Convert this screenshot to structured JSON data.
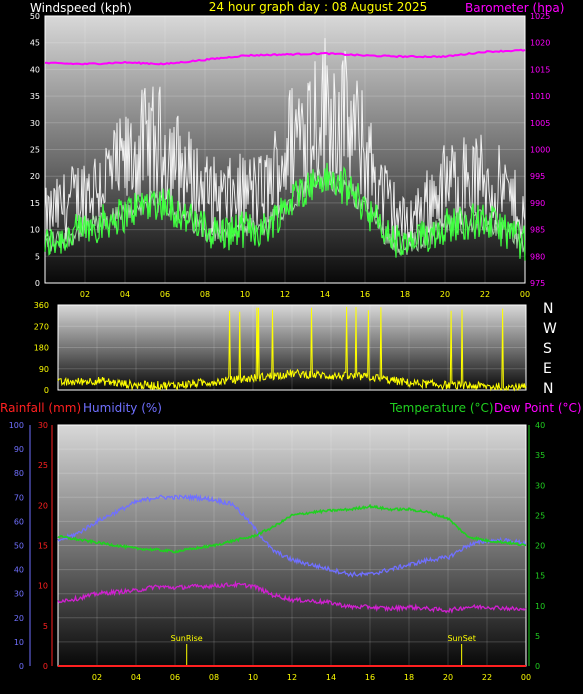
{
  "colors": {
    "wind_gust": "#ffffff",
    "wind_avg": "#40ff40",
    "barometer": "#ff00ff",
    "direction": "#ffff00",
    "rainfall": "#ff2020",
    "humidity": "#7070ff",
    "temperature": "#20d020",
    "dewpoint": "#d020d0",
    "tick_text": "#ffff00"
  },
  "chart_data": [
    {
      "type": "line",
      "title": "24 hour graph day : 08 August 2025",
      "ylabel_left": "Windspeed (kph)",
      "ylabel_right": "Barometer (hpa)",
      "ylim_left": [
        0,
        50
      ],
      "ylim_right": [
        975,
        1025
      ],
      "yticks_left": [
        "0",
        "5",
        "10",
        "15",
        "20",
        "25",
        "30",
        "35",
        "40",
        "45",
        "50"
      ],
      "yticks_right": [
        "975",
        "980",
        "985",
        "990",
        "995",
        "1000",
        "1005",
        "1010",
        "1015",
        "1020",
        "1025"
      ],
      "xticks": [
        "02",
        "04",
        "06",
        "08",
        "10",
        "12",
        "14",
        "16",
        "18",
        "20",
        "22",
        "00"
      ],
      "grid": true,
      "series": [
        {
          "name": "Windspeed (kph)",
          "x": [
            0,
            1,
            2,
            3,
            4,
            5,
            6,
            7,
            8,
            9,
            10,
            11,
            12,
            13,
            14,
            15,
            16,
            17,
            18,
            19,
            20,
            21,
            22,
            23,
            24
          ],
          "values": [
            10,
            12,
            14,
            16,
            18,
            21,
            21,
            17,
            14,
            13,
            14,
            14,
            20,
            25,
            27,
            25,
            20,
            13,
            9,
            12,
            15,
            16,
            16,
            14,
            10
          ]
        },
        {
          "name": "Barometer (hpa)",
          "x": [
            0,
            2,
            4,
            6,
            8,
            10,
            12,
            14,
            16,
            18,
            20,
            22,
            24
          ],
          "values": [
            1016.2,
            1016.0,
            1016.3,
            1016.0,
            1016.8,
            1017.6,
            1017.8,
            1018.0,
            1017.6,
            1017.4,
            1017.4,
            1018.3,
            1018.6
          ]
        }
      ]
    },
    {
      "type": "line",
      "ylim": [
        0,
        360
      ],
      "yticks": [
        "0",
        "90",
        "180",
        "270",
        "360"
      ],
      "direction_labels": [
        "N",
        "W",
        "S",
        "E",
        "N"
      ],
      "series": [
        {
          "name": "Wind direction",
          "x": [
            0,
            2,
            4,
            6,
            8,
            10,
            12,
            14,
            16,
            18,
            20,
            22,
            24
          ],
          "values": [
            30,
            40,
            20,
            20,
            35,
            50,
            70,
            60,
            55,
            30,
            20,
            15,
            10
          ]
        }
      ]
    },
    {
      "type": "line",
      "ylabel_left_1": "Rainfall (mm)",
      "ylabel_left_2": "Humidity (%)",
      "ylabel_right_1": "Temperature (°C)",
      "ylabel_right_2": "Dew Point (°C)",
      "ylim_rain": [
        0,
        30
      ],
      "ylim_humidity": [
        0,
        100
      ],
      "ylim_temp": [
        0,
        40
      ],
      "yticks_humidity": [
        "0",
        "10",
        "20",
        "30",
        "40",
        "50",
        "60",
        "70",
        "80",
        "90",
        "100"
      ],
      "yticks_rain": [
        "0",
        "5",
        "10",
        "15",
        "20",
        "25",
        "30"
      ],
      "yticks_temp": [
        "0",
        "5",
        "10",
        "15",
        "20",
        "25",
        "30",
        "35",
        "40"
      ],
      "xticks": [
        "02",
        "04",
        "06",
        "08",
        "10",
        "12",
        "14",
        "16",
        "18",
        "20",
        "22",
        "00"
      ],
      "annotations": [
        {
          "label": "SunRise",
          "x": 6.6
        },
        {
          "label": "SunSet",
          "x": 20.7
        }
      ],
      "series": [
        {
          "name": "Rainfall (mm)",
          "x": [
            0,
            24
          ],
          "values": [
            0,
            0
          ]
        },
        {
          "name": "Humidity (%)",
          "x": [
            0,
            1,
            2,
            3,
            4,
            5,
            6,
            7,
            8,
            9,
            10,
            11,
            12,
            13,
            14,
            15,
            16,
            17,
            18,
            19,
            20,
            21,
            22,
            23,
            24
          ],
          "values": [
            52,
            55,
            60,
            64,
            68,
            70,
            70,
            70,
            69,
            67,
            58,
            48,
            44,
            42,
            40,
            38,
            38,
            40,
            42,
            44,
            45,
            50,
            52,
            52,
            51
          ]
        },
        {
          "name": "Temperature (°C)",
          "x": [
            0,
            1,
            2,
            3,
            4,
            5,
            6,
            7,
            8,
            9,
            10,
            11,
            12,
            13,
            14,
            15,
            16,
            17,
            18,
            19,
            20,
            21,
            22,
            23,
            24
          ],
          "values": [
            21.5,
            21.0,
            20.5,
            20.0,
            19.5,
            19.3,
            19.0,
            19.5,
            20.0,
            20.8,
            21.5,
            23.0,
            25.0,
            25.5,
            25.8,
            26.0,
            26.5,
            26.0,
            26.0,
            25.5,
            24.5,
            21.5,
            20.8,
            20.5,
            20.0
          ]
        },
        {
          "name": "Dew Point (°C)",
          "x": [
            0,
            1,
            2,
            3,
            4,
            5,
            6,
            7,
            8,
            9,
            10,
            11,
            12,
            13,
            14,
            15,
            16,
            17,
            18,
            19,
            20,
            21,
            22,
            23,
            24
          ],
          "values": [
            10.8,
            11.2,
            12.0,
            12.3,
            12.5,
            13.2,
            13.0,
            13.2,
            13.3,
            13.5,
            13.3,
            11.8,
            11.0,
            10.8,
            10.5,
            9.8,
            9.8,
            9.5,
            9.8,
            9.5,
            9.2,
            9.8,
            9.8,
            9.6,
            9.3
          ]
        }
      ]
    }
  ]
}
